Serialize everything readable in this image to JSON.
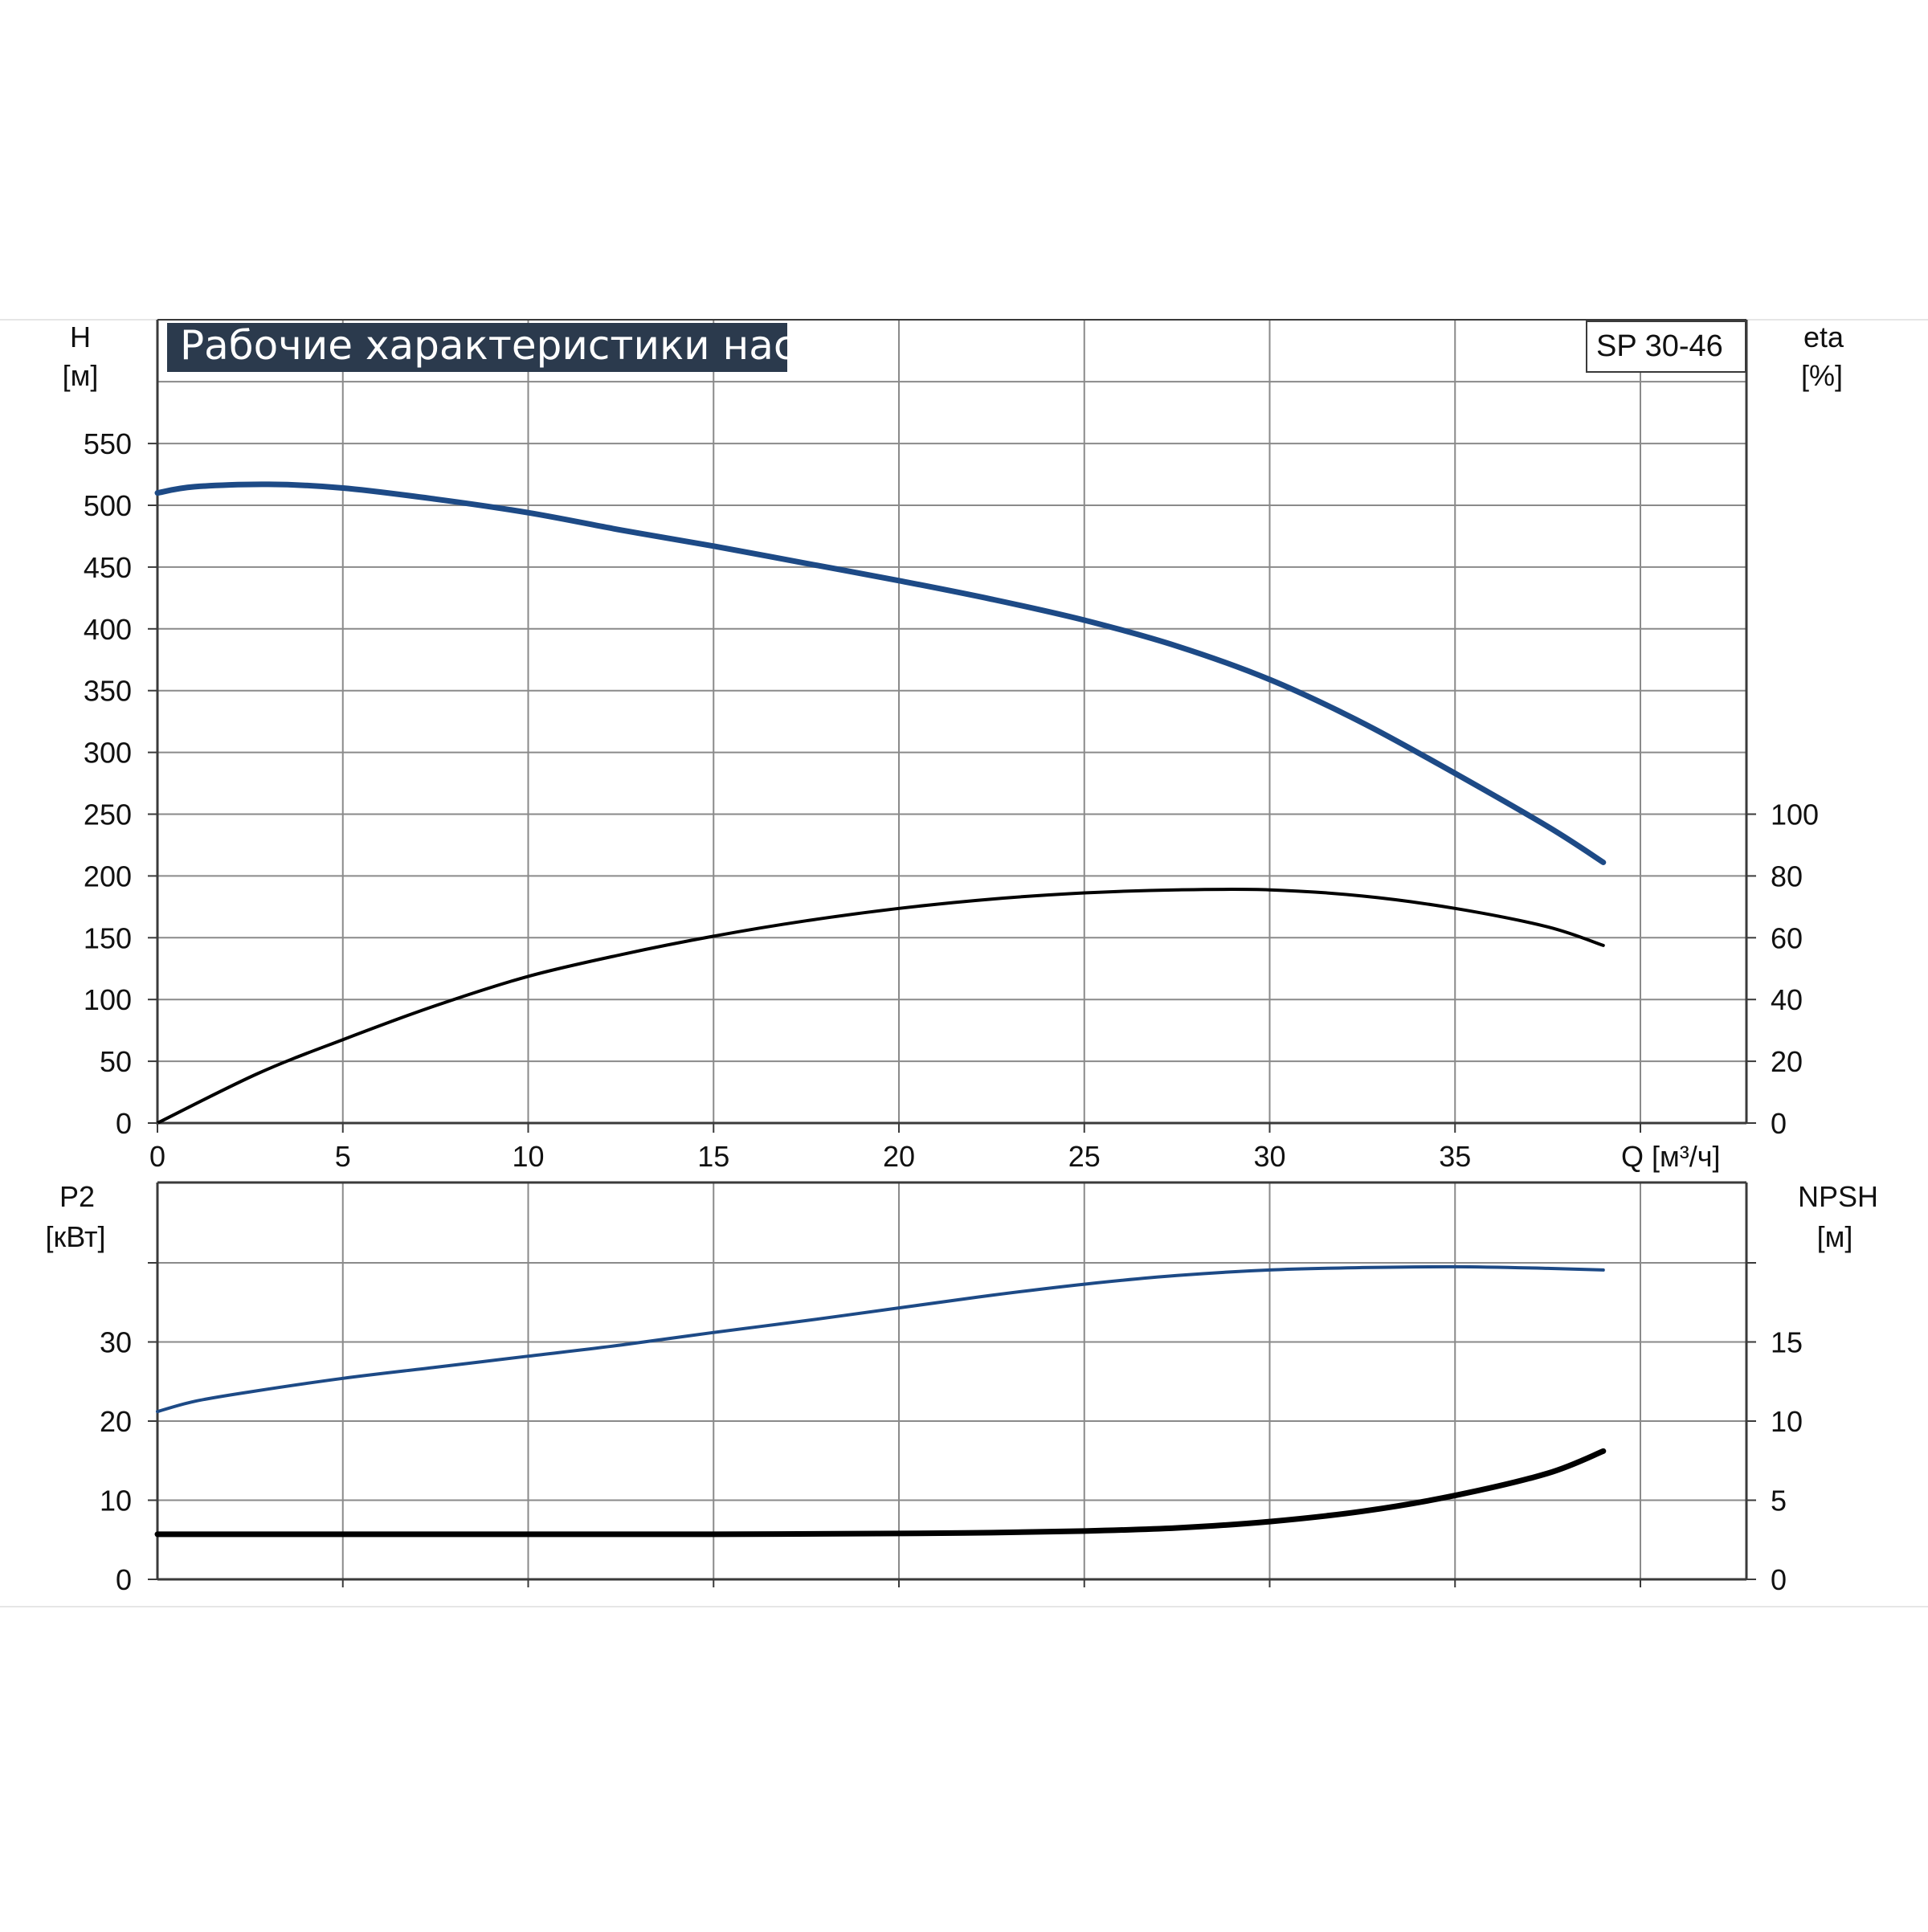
{
  "title": "Рабочие характеристики насоса",
  "model": "SP 30-46",
  "colors": {
    "background": "#ffffff",
    "grid": "#8a8a8a",
    "frame": "#3a3a3a",
    "title_bg": "#2b3a4d",
    "head_curve": "#1d4a86",
    "eta_curve": "#000000",
    "p2_curve": "#1d4a86",
    "npsh_curve": "#000000"
  },
  "chart_data": [
    {
      "type": "line",
      "name": "upper",
      "xlabel": "Q [м³/ч]",
      "ylabel_left": [
        "H",
        "[м]"
      ],
      "ylabel_right": [
        "eta",
        "[%]"
      ],
      "xlim": [
        0,
        40
      ],
      "ylim_left": [
        0,
        600
      ],
      "ylim_right": [
        0,
        240
      ],
      "x_ticks": [
        "0",
        "5",
        "10",
        "15",
        "20",
        "25",
        "30",
        "35"
      ],
      "y_ticks_left": [
        "0",
        "50",
        "100",
        "150",
        "200",
        "250",
        "300",
        "350",
        "400",
        "450",
        "500",
        "550"
      ],
      "y_ticks_right": [
        "0",
        "20",
        "40",
        "60",
        "80",
        "100"
      ],
      "grid": true,
      "series": [
        {
          "key": "H",
          "axis": "left",
          "x": [
            0,
            1,
            3,
            5,
            7.5,
            10,
            12.5,
            15,
            17.5,
            20,
            22.5,
            25,
            27.5,
            30,
            32.5,
            35,
            37.5,
            39
          ],
          "y": [
            510,
            515,
            517,
            514,
            505,
            494,
            480,
            467,
            453,
            439,
            424,
            407,
            386,
            359,
            324,
            283,
            240,
            211
          ]
        },
        {
          "key": "eta",
          "axis": "right",
          "x": [
            0,
            2.7,
            5,
            7.5,
            10,
            12.5,
            15,
            17.5,
            20,
            22.5,
            25,
            27.5,
            30,
            32.5,
            35,
            37.5,
            39
          ],
          "y": [
            0,
            16,
            27,
            38,
            47.5,
            54.5,
            60.5,
            65.5,
            69.5,
            72.5,
            74.5,
            75.5,
            75.5,
            73.5,
            69.5,
            63.5,
            57.5
          ]
        }
      ]
    },
    {
      "type": "line",
      "name": "lower",
      "xlim": [
        0,
        40
      ],
      "ylabel_left": [
        "P2",
        "[кВт]"
      ],
      "ylabel_right": [
        "NPSH",
        "[м]"
      ],
      "ylim_left": [
        0,
        40
      ],
      "ylim_right": [
        0,
        20
      ],
      "y_ticks_left": [
        "0",
        "10",
        "20",
        "30"
      ],
      "y_ticks_right": [
        "0",
        "5",
        "10",
        "15"
      ],
      "grid": true,
      "series": [
        {
          "key": "P2",
          "axis": "left",
          "x": [
            0,
            1,
            2.5,
            5,
            7.5,
            10,
            12.5,
            15,
            17.5,
            20,
            22.5,
            25,
            27.5,
            30,
            32.5,
            35,
            37.5,
            39
          ],
          "y": [
            21.2,
            22.5,
            23.7,
            25.4,
            26.8,
            28.2,
            29.6,
            31.2,
            32.7,
            34.3,
            35.9,
            37.3,
            38.4,
            39.1,
            39.4,
            39.5,
            39.3,
            39.1
          ]
        },
        {
          "key": "NPSH",
          "axis": "right",
          "x": [
            0,
            2.7,
            5,
            10,
            15,
            20,
            22.5,
            25,
            27.5,
            30,
            32.5,
            35,
            37.5,
            39
          ],
          "y": [
            2.85,
            2.85,
            2.85,
            2.85,
            2.85,
            2.9,
            2.95,
            3.05,
            3.25,
            3.65,
            4.3,
            5.3,
            6.7,
            8.1
          ]
        }
      ]
    }
  ]
}
